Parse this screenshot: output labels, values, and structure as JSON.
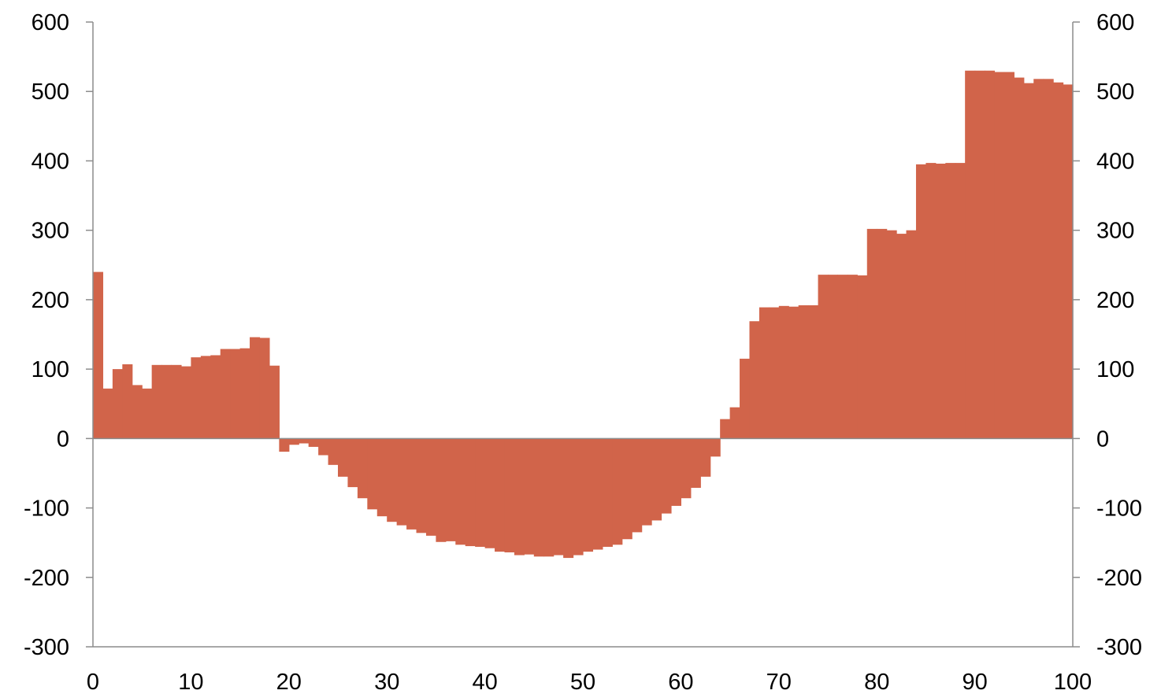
{
  "chart_data": {
    "type": "bar",
    "title": "",
    "xlabel": "",
    "ylabel": "",
    "xlim": [
      0,
      100
    ],
    "ylim": [
      -300,
      600
    ],
    "grid": false,
    "legend": "none",
    "x_ticks": [
      0,
      10,
      20,
      30,
      40,
      50,
      60,
      70,
      80,
      90,
      100
    ],
    "y_ticks": [
      600,
      500,
      400,
      300,
      200,
      100,
      0,
      -100,
      -200,
      -300
    ],
    "x_tick_labels": [
      "0",
      "10",
      "20",
      "30",
      "40",
      "50",
      "60",
      "70",
      "80",
      "90",
      "100"
    ],
    "y_tick_labels_left": [
      "600",
      "500",
      "400",
      "300",
      "200",
      "100",
      "0",
      "-100",
      "-200",
      "-300"
    ],
    "y_tick_labels_right": [
      "600",
      "500",
      "400",
      "300",
      "200",
      "100",
      "0",
      "-100",
      "-200",
      "-300"
    ],
    "colors": {
      "bar": "#D1644A",
      "axis": "#8C8C8C",
      "text": "#000000",
      "background": "#FFFFFF"
    },
    "bar_width": 1,
    "x": [
      0,
      1,
      2,
      3,
      4,
      5,
      6,
      7,
      8,
      9,
      10,
      11,
      12,
      13,
      14,
      15,
      16,
      17,
      18,
      19,
      20,
      21,
      22,
      23,
      24,
      25,
      26,
      27,
      28,
      29,
      30,
      31,
      32,
      33,
      34,
      35,
      36,
      37,
      38,
      39,
      40,
      41,
      42,
      43,
      44,
      45,
      46,
      47,
      48,
      49,
      50,
      51,
      52,
      53,
      54,
      55,
      56,
      57,
      58,
      59,
      60,
      61,
      62,
      63,
      64,
      65,
      66,
      67,
      68,
      69,
      70,
      71,
      72,
      73,
      74,
      75,
      76,
      77,
      78,
      79,
      80,
      81,
      82,
      83,
      84,
      85,
      86,
      87,
      88,
      89,
      90,
      91,
      92,
      93,
      94,
      95,
      96,
      97,
      98,
      99
    ],
    "values": [
      240,
      72,
      100,
      107,
      77,
      72,
      106,
      106,
      106,
      104,
      117,
      119,
      120,
      129,
      129,
      130,
      146,
      145,
      105,
      -19,
      -9,
      -7,
      -12,
      -24,
      -38,
      -55,
      -70,
      -86,
      -102,
      -112,
      -120,
      -125,
      -131,
      -136,
      -140,
      -149,
      -148,
      -153,
      -155,
      -156,
      -158,
      -163,
      -164,
      -168,
      -167,
      -170,
      -170,
      -168,
      -172,
      -168,
      -163,
      -160,
      -156,
      -153,
      -145,
      -135,
      -125,
      -118,
      -108,
      -97,
      -86,
      -71,
      -55,
      -26,
      28,
      45,
      115,
      169,
      189,
      189,
      191,
      190,
      192,
      192,
      236,
      236,
      236,
      236,
      235,
      302,
      302,
      300,
      295,
      300,
      395,
      397,
      396,
      397,
      397,
      530,
      530,
      530,
      528,
      528,
      520,
      512,
      518,
      518,
      513,
      510
    ]
  }
}
